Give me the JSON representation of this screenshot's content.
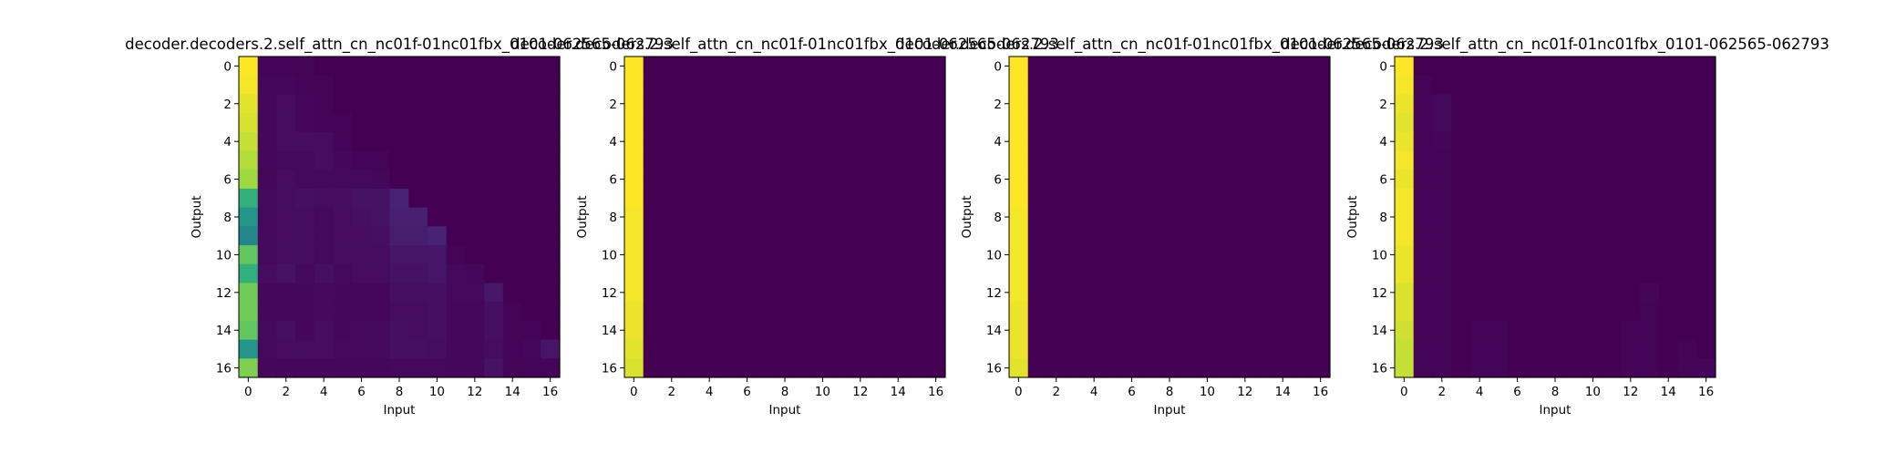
{
  "chart_data": [
    {
      "type": "heatmap",
      "title": "decoder.decoders.2.self_attn_cn_nc01f-01nc01fbx_0101-062565-062793",
      "xlabel": "Input",
      "ylabel": "Output",
      "x_ticks": [
        "0",
        "2",
        "4",
        "6",
        "8",
        "10",
        "12",
        "14",
        "16"
      ],
      "y_ticks": [
        "0",
        "2",
        "4",
        "6",
        "8",
        "10",
        "12",
        "14",
        "16"
      ],
      "rows": 17,
      "cols": 17,
      "colormap": "viridis",
      "values": [
        [
          0.96,
          0.01,
          0.01,
          0.01,
          0,
          0,
          0,
          0,
          0,
          0,
          0,
          0,
          0,
          0,
          0,
          0,
          0
        ],
        [
          0.95,
          0.02,
          0.02,
          0.01,
          0.01,
          0,
          0,
          0,
          0,
          0,
          0,
          0,
          0,
          0,
          0,
          0,
          0
        ],
        [
          0.93,
          0.02,
          0.04,
          0.02,
          0.01,
          0,
          0,
          0,
          0,
          0,
          0,
          0,
          0,
          0,
          0,
          0,
          0
        ],
        [
          0.92,
          0.02,
          0.04,
          0.02,
          0.01,
          0.01,
          0,
          0,
          0,
          0,
          0,
          0,
          0,
          0,
          0,
          0,
          0
        ],
        [
          0.9,
          0.02,
          0.04,
          0.04,
          0.04,
          0.01,
          0,
          0,
          0,
          0,
          0,
          0,
          0,
          0,
          0,
          0,
          0
        ],
        [
          0.88,
          0.02,
          0.03,
          0.03,
          0.04,
          0.02,
          0.01,
          0.01,
          0,
          0,
          0,
          0,
          0,
          0,
          0,
          0,
          0
        ],
        [
          0.86,
          0.02,
          0.04,
          0.03,
          0.03,
          0.03,
          0.03,
          0.02,
          0,
          0,
          0,
          0,
          0,
          0,
          0,
          0,
          0
        ],
        [
          0.7,
          0.03,
          0.04,
          0.05,
          0.04,
          0.04,
          0.06,
          0.06,
          0.12,
          0,
          0,
          0,
          0,
          0,
          0,
          0,
          0
        ],
        [
          0.62,
          0.03,
          0.04,
          0.04,
          0.03,
          0.04,
          0.05,
          0.06,
          0.11,
          0.11,
          0,
          0,
          0,
          0,
          0,
          0,
          0
        ],
        [
          0.55,
          0.03,
          0.04,
          0.04,
          0.03,
          0.04,
          0.04,
          0.05,
          0.1,
          0.1,
          0.12,
          0,
          0,
          0,
          0,
          0,
          0
        ],
        [
          0.78,
          0.03,
          0.04,
          0.04,
          0.03,
          0.04,
          0.04,
          0.04,
          0.07,
          0.07,
          0.07,
          0.01,
          0,
          0,
          0,
          0,
          0
        ],
        [
          0.7,
          0.04,
          0.06,
          0.03,
          0.05,
          0.03,
          0.04,
          0.04,
          0.06,
          0.06,
          0.07,
          0.03,
          0.02,
          0,
          0,
          0,
          0
        ],
        [
          0.8,
          0.02,
          0.02,
          0.02,
          0.03,
          0.02,
          0.02,
          0.02,
          0.05,
          0.05,
          0.05,
          0.03,
          0.03,
          0.08,
          0,
          0,
          0
        ],
        [
          0.8,
          0.02,
          0.02,
          0.02,
          0.03,
          0.02,
          0.02,
          0.02,
          0.04,
          0.04,
          0.05,
          0.02,
          0.02,
          0.05,
          0.01,
          0,
          0
        ],
        [
          0.78,
          0.03,
          0.05,
          0.02,
          0.04,
          0.02,
          0.03,
          0.03,
          0.05,
          0.04,
          0.05,
          0.02,
          0.02,
          0.05,
          0.01,
          0.01,
          0
        ],
        [
          0.62,
          0.03,
          0.04,
          0.04,
          0.04,
          0.03,
          0.03,
          0.03,
          0.05,
          0.05,
          0.04,
          0.02,
          0.02,
          0.04,
          0.01,
          0.02,
          0.07
        ],
        [
          0.82,
          0.02,
          0.02,
          0.02,
          0.02,
          0.02,
          0.02,
          0.02,
          0.03,
          0.03,
          0.03,
          0.02,
          0.02,
          0.06,
          0.01,
          0.01,
          0.01
        ]
      ]
    },
    {
      "type": "heatmap",
      "title": "decoder.decoders.2.self_attn_cn_nc01f-01nc01fbx_0101-062565-062793",
      "xlabel": "Input",
      "ylabel": "Output",
      "x_ticks": [
        "0",
        "2",
        "4",
        "6",
        "8",
        "10",
        "12",
        "14",
        "16"
      ],
      "y_ticks": [
        "0",
        "2",
        "4",
        "6",
        "8",
        "10",
        "12",
        "14",
        "16"
      ],
      "rows": 17,
      "cols": 17,
      "colormap": "viridis",
      "values": [
        [
          0.99,
          0,
          0,
          0,
          0,
          0,
          0,
          0,
          0,
          0,
          0,
          0,
          0,
          0,
          0,
          0,
          0
        ],
        [
          0.99,
          0,
          0,
          0,
          0,
          0,
          0,
          0,
          0,
          0,
          0,
          0,
          0,
          0,
          0,
          0,
          0
        ],
        [
          0.99,
          0,
          0,
          0,
          0,
          0,
          0,
          0,
          0,
          0,
          0,
          0,
          0,
          0,
          0,
          0,
          0
        ],
        [
          0.99,
          0,
          0,
          0,
          0,
          0,
          0,
          0,
          0,
          0,
          0,
          0,
          0,
          0,
          0,
          0,
          0
        ],
        [
          0.99,
          0,
          0,
          0,
          0,
          0,
          0,
          0,
          0,
          0,
          0,
          0,
          0,
          0,
          0,
          0,
          0
        ],
        [
          0.99,
          0,
          0,
          0,
          0,
          0,
          0,
          0,
          0,
          0,
          0,
          0,
          0,
          0,
          0,
          0,
          0
        ],
        [
          0.99,
          0,
          0,
          0,
          0,
          0,
          0,
          0,
          0,
          0,
          0,
          0,
          0,
          0,
          0,
          0,
          0
        ],
        [
          0.99,
          0,
          0,
          0,
          0,
          0,
          0,
          0,
          0,
          0,
          0,
          0,
          0,
          0,
          0,
          0,
          0
        ],
        [
          0.98,
          0,
          0,
          0,
          0,
          0,
          0,
          0,
          0,
          0,
          0,
          0,
          0,
          0,
          0,
          0,
          0
        ],
        [
          0.98,
          0,
          0,
          0,
          0,
          0,
          0,
          0,
          0,
          0,
          0,
          0,
          0,
          0,
          0,
          0,
          0
        ],
        [
          0.98,
          0,
          0,
          0,
          0,
          0,
          0,
          0,
          0,
          0,
          0,
          0,
          0,
          0,
          0,
          0,
          0
        ],
        [
          0.98,
          0,
          0,
          0,
          0,
          0,
          0,
          0,
          0,
          0,
          0,
          0,
          0,
          0,
          0,
          0,
          0
        ],
        [
          0.98,
          0,
          0,
          0,
          0,
          0,
          0,
          0,
          0,
          0,
          0,
          0,
          0,
          0,
          0,
          0,
          0
        ],
        [
          0.97,
          0,
          0,
          0,
          0,
          0,
          0,
          0,
          0,
          0,
          0,
          0,
          0,
          0,
          0,
          0,
          0
        ],
        [
          0.97,
          0,
          0,
          0,
          0,
          0,
          0,
          0,
          0,
          0,
          0,
          0,
          0,
          0,
          0,
          0,
          0
        ],
        [
          0.96,
          0,
          0,
          0,
          0,
          0,
          0,
          0,
          0,
          0,
          0,
          0,
          0,
          0,
          0,
          0,
          0
        ],
        [
          0.95,
          0,
          0,
          0,
          0,
          0,
          0,
          0,
          0,
          0,
          0,
          0,
          0,
          0,
          0,
          0,
          0
        ]
      ]
    },
    {
      "type": "heatmap",
      "title": "decoder.decoders.2.self_attn_cn_nc01f-01nc01fbx_0101-062565-062793",
      "xlabel": "Input",
      "ylabel": "Output",
      "x_ticks": [
        "0",
        "2",
        "4",
        "6",
        "8",
        "10",
        "12",
        "14",
        "16"
      ],
      "y_ticks": [
        "0",
        "2",
        "4",
        "6",
        "8",
        "10",
        "12",
        "14",
        "16"
      ],
      "rows": 17,
      "cols": 17,
      "colormap": "viridis",
      "values": [
        [
          0.99,
          0,
          0,
          0,
          0,
          0,
          0,
          0,
          0,
          0,
          0,
          0,
          0,
          0,
          0,
          0,
          0
        ],
        [
          0.99,
          0,
          0,
          0,
          0,
          0,
          0,
          0,
          0,
          0,
          0,
          0,
          0,
          0,
          0,
          0,
          0
        ],
        [
          0.99,
          0,
          0,
          0,
          0,
          0,
          0,
          0,
          0,
          0,
          0,
          0,
          0,
          0,
          0,
          0,
          0
        ],
        [
          0.99,
          0,
          0,
          0,
          0,
          0,
          0,
          0,
          0,
          0,
          0,
          0,
          0,
          0,
          0,
          0,
          0
        ],
        [
          0.99,
          0,
          0,
          0,
          0,
          0,
          0,
          0,
          0,
          0,
          0,
          0,
          0,
          0,
          0,
          0,
          0
        ],
        [
          0.99,
          0,
          0,
          0,
          0,
          0,
          0,
          0,
          0,
          0,
          0,
          0,
          0,
          0,
          0,
          0,
          0
        ],
        [
          0.99,
          0,
          0,
          0,
          0,
          0,
          0,
          0,
          0,
          0,
          0,
          0,
          0,
          0,
          0,
          0,
          0
        ],
        [
          0.99,
          0,
          0,
          0,
          0,
          0,
          0,
          0,
          0,
          0,
          0,
          0,
          0,
          0,
          0,
          0,
          0
        ],
        [
          0.98,
          0,
          0,
          0,
          0,
          0,
          0,
          0,
          0,
          0,
          0,
          0,
          0,
          0,
          0,
          0,
          0
        ],
        [
          0.98,
          0,
          0,
          0,
          0,
          0,
          0,
          0,
          0,
          0,
          0,
          0,
          0,
          0,
          0,
          0,
          0
        ],
        [
          0.98,
          0,
          0,
          0,
          0,
          0,
          0,
          0,
          0,
          0,
          0,
          0,
          0,
          0,
          0,
          0,
          0
        ],
        [
          0.98,
          0,
          0,
          0,
          0,
          0,
          0,
          0,
          0,
          0,
          0,
          0,
          0,
          0,
          0,
          0,
          0
        ],
        [
          0.98,
          0,
          0,
          0,
          0,
          0,
          0,
          0,
          0,
          0,
          0,
          0,
          0,
          0,
          0,
          0,
          0
        ],
        [
          0.97,
          0,
          0,
          0,
          0,
          0,
          0,
          0,
          0,
          0,
          0,
          0,
          0,
          0,
          0,
          0,
          0
        ],
        [
          0.97,
          0,
          0,
          0,
          0,
          0,
          0,
          0,
          0,
          0,
          0,
          0,
          0,
          0,
          0,
          0,
          0
        ],
        [
          0.97,
          0,
          0,
          0,
          0,
          0,
          0,
          0,
          0,
          0,
          0,
          0,
          0,
          0,
          0,
          0,
          0
        ],
        [
          0.96,
          0,
          0,
          0,
          0,
          0,
          0,
          0,
          0,
          0,
          0,
          0,
          0,
          0,
          0,
          0,
          0
        ]
      ]
    },
    {
      "type": "heatmap",
      "title": "decoder.decoders.2.self_attn_cn_nc01f-01nc01fbx_0101-062565-062793",
      "xlabel": "Input",
      "ylabel": "Output",
      "x_ticks": [
        "0",
        "2",
        "4",
        "6",
        "8",
        "10",
        "12",
        "14",
        "16"
      ],
      "y_ticks": [
        "0",
        "2",
        "4",
        "6",
        "8",
        "10",
        "12",
        "14",
        "16"
      ],
      "rows": 17,
      "cols": 17,
      "colormap": "viridis",
      "values": [
        [
          0.98,
          0,
          0,
          0,
          0,
          0,
          0,
          0,
          0,
          0,
          0,
          0,
          0,
          0,
          0,
          0,
          0
        ],
        [
          0.97,
          0.01,
          0,
          0,
          0,
          0,
          0,
          0,
          0,
          0,
          0,
          0,
          0,
          0,
          0,
          0,
          0
        ],
        [
          0.96,
          0.01,
          0.03,
          0,
          0,
          0,
          0,
          0,
          0,
          0,
          0,
          0,
          0,
          0,
          0,
          0,
          0
        ],
        [
          0.95,
          0.01,
          0.03,
          0,
          0,
          0,
          0,
          0,
          0,
          0,
          0,
          0,
          0,
          0,
          0,
          0,
          0
        ],
        [
          0.96,
          0.01,
          0.02,
          0,
          0,
          0,
          0,
          0,
          0,
          0,
          0,
          0,
          0,
          0,
          0,
          0,
          0
        ],
        [
          0.97,
          0.01,
          0.01,
          0,
          0,
          0,
          0,
          0,
          0,
          0,
          0,
          0,
          0,
          0,
          0,
          0,
          0
        ],
        [
          0.96,
          0.01,
          0.01,
          0,
          0,
          0,
          0,
          0,
          0,
          0,
          0,
          0,
          0,
          0,
          0,
          0,
          0
        ],
        [
          0.97,
          0.01,
          0.01,
          0,
          0,
          0,
          0,
          0,
          0,
          0,
          0,
          0,
          0,
          0,
          0,
          0,
          0
        ],
        [
          0.97,
          0.01,
          0.01,
          0,
          0,
          0,
          0,
          0,
          0,
          0,
          0,
          0,
          0,
          0,
          0,
          0,
          0
        ],
        [
          0.97,
          0.01,
          0.01,
          0,
          0,
          0,
          0,
          0,
          0,
          0,
          0,
          0,
          0,
          0,
          0,
          0,
          0
        ],
        [
          0.96,
          0.01,
          0.01,
          0,
          0,
          0,
          0,
          0,
          0,
          0,
          0,
          0,
          0,
          0,
          0,
          0,
          0
        ],
        [
          0.96,
          0.01,
          0.01,
          0,
          0,
          0,
          0,
          0,
          0,
          0,
          0,
          0,
          0,
          0,
          0,
          0,
          0
        ],
        [
          0.94,
          0.01,
          0.01,
          0,
          0,
          0,
          0,
          0,
          0,
          0,
          0,
          0,
          0,
          0.02,
          0,
          0,
          0
        ],
        [
          0.94,
          0.01,
          0.01,
          0,
          0,
          0,
          0,
          0,
          0,
          0,
          0,
          0,
          0,
          0.01,
          0,
          0,
          0
        ],
        [
          0.93,
          0.01,
          0.01,
          0,
          0.01,
          0.01,
          0,
          0,
          0,
          0,
          0,
          0,
          0.01,
          0.01,
          0,
          0,
          0
        ],
        [
          0.92,
          0.01,
          0.01,
          0,
          0.01,
          0.01,
          0,
          0,
          0,
          0,
          0,
          0,
          0.01,
          0.01,
          0,
          0.01,
          0
        ],
        [
          0.92,
          0.01,
          0.01,
          0,
          0.01,
          0.01,
          0,
          0,
          0,
          0,
          0,
          0,
          0.01,
          0.01,
          0,
          0.01,
          0.02
        ]
      ]
    }
  ]
}
